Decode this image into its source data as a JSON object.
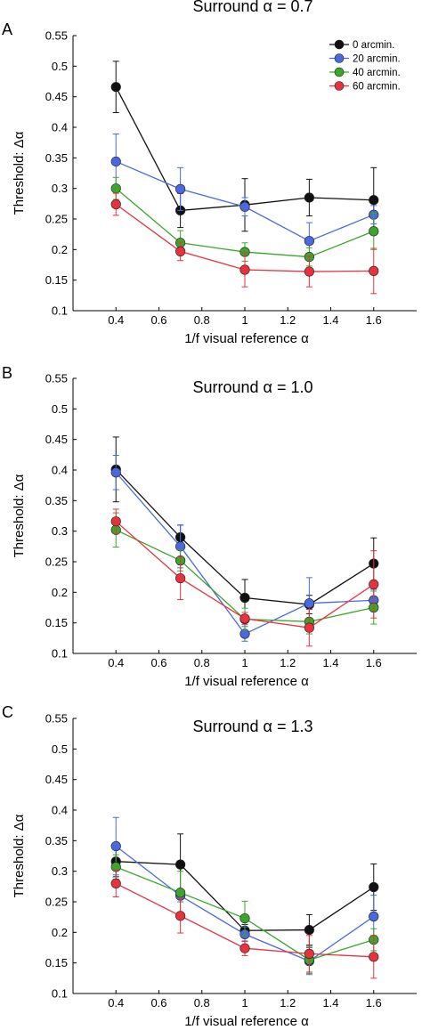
{
  "legend": [
    {
      "label": "0   arcmin.",
      "color": "#111111"
    },
    {
      "label": "20 arcmin.",
      "color": "#4a69e0"
    },
    {
      "label": "40 arcmin.",
      "color": "#3aa72a"
    },
    {
      "label": "60 arcmin.",
      "color": "#e8323e"
    }
  ],
  "chart_data": [
    {
      "type": "line",
      "panel_label": "A",
      "title": "Surround α = 0.7",
      "xlabel": "1/f visual reference α",
      "ylabel": "Threshold: Δα",
      "xlim": [
        0.2,
        1.8
      ],
      "ylim": [
        0.1,
        0.55
      ],
      "xticks": [
        "0.4",
        "0.6",
        "0.8",
        "1",
        "1.2",
        "1.4",
        "1.6"
      ],
      "yticks": [
        "0.1",
        "0.15",
        "0.2",
        "0.25",
        "0.3",
        "0.35",
        "0.4",
        "0.45",
        "0.5",
        "0.55"
      ],
      "x": [
        0.4,
        0.7,
        1.0,
        1.3,
        1.6
      ],
      "series": [
        {
          "name": "0   arcmin.",
          "color": "#111111",
          "values": [
            0.466,
            0.264,
            0.273,
            0.285,
            0.281
          ],
          "errors": [
            0.042,
            0.028,
            0.043,
            0.03,
            0.053
          ]
        },
        {
          "name": "20 arcmin.",
          "color": "#4a69e0",
          "values": [
            0.344,
            0.299,
            0.27,
            0.214,
            0.257
          ],
          "errors": [
            0.045,
            0.035,
            0.015,
            0.03,
            0.015
          ]
        },
        {
          "name": "40 arcmin.",
          "color": "#3aa72a",
          "values": [
            0.3,
            0.211,
            0.196,
            0.188,
            0.23
          ],
          "errors": [
            0.018,
            0.02,
            0.015,
            0.015,
            0.03
          ]
        },
        {
          "name": "60 arcmin.",
          "color": "#e8323e",
          "values": [
            0.274,
            0.197,
            0.167,
            0.164,
            0.165
          ],
          "errors": [
            0.018,
            0.015,
            0.028,
            0.025,
            0.037
          ]
        }
      ]
    },
    {
      "type": "line",
      "panel_label": "B",
      "title": "Surround α = 1.0",
      "xlabel": "1/f visual reference α",
      "ylabel": "Threshold: Δα",
      "xlim": [
        0.2,
        1.8
      ],
      "ylim": [
        0.1,
        0.55
      ],
      "xticks": [
        "0.4",
        "0.6",
        "0.8",
        "1",
        "1.2",
        "1.4",
        "1.6"
      ],
      "yticks": [
        "0.1",
        "0.15",
        "0.2",
        "0.25",
        "0.3",
        "0.35",
        "0.4",
        "0.45",
        "0.5",
        "0.55"
      ],
      "x": [
        0.4,
        0.7,
        1.0,
        1.3,
        1.6
      ],
      "series": [
        {
          "name": "0   arcmin.",
          "color": "#111111",
          "values": [
            0.401,
            0.29,
            0.191,
            0.18,
            0.247
          ],
          "errors": [
            0.053,
            0.02,
            0.03,
            0.015,
            0.042
          ]
        },
        {
          "name": "20 arcmin.",
          "color": "#4a69e0",
          "values": [
            0.396,
            0.275,
            0.132,
            0.182,
            0.187
          ],
          "errors": [
            0.028,
            0.035,
            0.012,
            0.042,
            0.018
          ]
        },
        {
          "name": "40 arcmin.",
          "color": "#3aa72a",
          "values": [
            0.302,
            0.252,
            0.156,
            0.152,
            0.175
          ],
          "errors": [
            0.028,
            0.017,
            0.018,
            0.02,
            0.027
          ]
        },
        {
          "name": "60 arcmin.",
          "color": "#e8323e",
          "values": [
            0.316,
            0.223,
            0.157,
            0.142,
            0.213
          ],
          "errors": [
            0.02,
            0.035,
            0.01,
            0.03,
            0.055
          ]
        }
      ]
    },
    {
      "type": "line",
      "panel_label": "C",
      "title": "Surround α = 1.3",
      "xlabel": "1/f visual reference α",
      "ylabel": "Threshold: Δα",
      "xlim": [
        0.2,
        1.8
      ],
      "ylim": [
        0.1,
        0.55
      ],
      "xticks": [
        "0.4",
        "0.6",
        "0.8",
        "1",
        "1.2",
        "1.4",
        "1.6"
      ],
      "yticks": [
        "0.1",
        "0.15",
        "0.2",
        "0.25",
        "0.3",
        "0.35",
        "0.4",
        "0.45",
        "0.5",
        "0.55"
      ],
      "x": [
        0.4,
        0.7,
        1.0,
        1.3,
        1.6
      ],
      "series": [
        {
          "name": "0   arcmin.",
          "color": "#111111",
          "values": [
            0.316,
            0.311,
            0.203,
            0.204,
            0.274
          ],
          "errors": [
            0.025,
            0.05,
            0.01,
            0.025,
            0.038
          ]
        },
        {
          "name": "20 arcmin.",
          "color": "#4a69e0",
          "values": [
            0.341,
            0.26,
            0.197,
            0.153,
            0.226
          ],
          "errors": [
            0.047,
            0.01,
            0.012,
            0.022,
            0.035
          ]
        },
        {
          "name": "40 arcmin.",
          "color": "#3aa72a",
          "values": [
            0.307,
            0.265,
            0.223,
            0.155,
            0.188
          ],
          "errors": [
            0.02,
            0.035,
            0.028,
            0.022,
            0.018
          ]
        },
        {
          "name": "60 arcmin.",
          "color": "#e8323e",
          "values": [
            0.28,
            0.227,
            0.174,
            0.165,
            0.16
          ],
          "errors": [
            0.022,
            0.028,
            0.012,
            0.03,
            0.035
          ]
        }
      ]
    }
  ]
}
